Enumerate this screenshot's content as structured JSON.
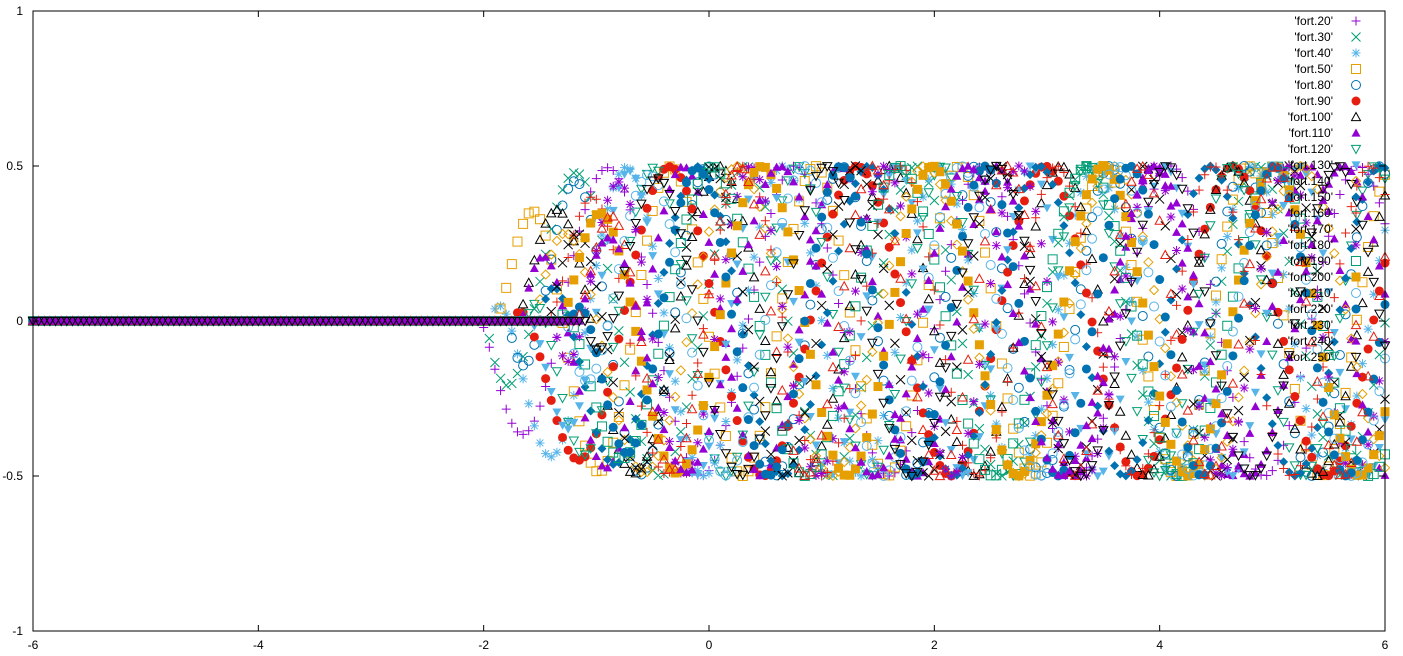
{
  "chart_data": {
    "type": "scatter",
    "title": "",
    "xlabel": "",
    "ylabel": "",
    "xlim": [
      -6,
      6
    ],
    "ylim": [
      -1,
      1
    ],
    "x_ticks": [
      -6,
      -4,
      -2,
      0,
      2,
      4,
      6
    ],
    "y_ticks": [
      -1,
      -0.5,
      0,
      0.5,
      1
    ],
    "x_tick_labels": [
      "-6",
      "-4",
      "-2",
      "0",
      "2",
      "4",
      "6"
    ],
    "y_tick_labels": [
      "-1",
      "-0.5",
      "0",
      "0.5",
      "1"
    ],
    "grid": false,
    "legend_position": "top-right",
    "x_sampling": {
      "start": -6,
      "end": 6,
      "step": 0.05
    },
    "wave": {
      "front_start": -2.1,
      "front_speed": 0.004,
      "amplitude": 0.5,
      "k_base": 1.2,
      "k_growth": 0.12,
      "t_scale": 0.004
    },
    "series": [
      {
        "name": "'fort.20'",
        "marker": "plus",
        "color": "#9400d3",
        "t": 20,
        "sign": -1
      },
      {
        "name": "'fort.30'",
        "marker": "cross",
        "color": "#009e73",
        "t": 30,
        "sign": -1
      },
      {
        "name": "'fort.40'",
        "marker": "star",
        "color": "#56b4e9",
        "t": 40,
        "sign": 1
      },
      {
        "name": "'fort.50'",
        "marker": "square-open",
        "color": "#e69f00",
        "t": 50,
        "sign": -1
      },
      {
        "name": "'fort.80'",
        "marker": "circle-open",
        "color": "#0072b2",
        "t": 80,
        "sign": 1
      },
      {
        "name": "'fort.90'",
        "marker": "circle-filled",
        "color": "#e51e10",
        "t": 90,
        "sign": -1
      },
      {
        "name": "'fort.100'",
        "marker": "triangle-open",
        "color": "#000000",
        "t": 100,
        "sign": 1
      },
      {
        "name": "'fort.110'",
        "marker": "triangle-filled",
        "color": "#9400d3",
        "t": 110,
        "sign": 1
      },
      {
        "name": "'fort.120'",
        "marker": "triangle-down-open",
        "color": "#009e73",
        "t": 120,
        "sign": 1
      },
      {
        "name": "'fort.130'",
        "marker": "triangle-down-filled",
        "color": "#56b4e9",
        "t": 130,
        "sign": 1
      },
      {
        "name": "'fort.140'",
        "marker": "diamond-open",
        "color": "#e69f00",
        "t": 140,
        "sign": -1
      },
      {
        "name": "'fort.150'",
        "marker": "diamond-filled",
        "color": "#0072b2",
        "t": 150,
        "sign": -1
      },
      {
        "name": "'fort.160'",
        "marker": "plus",
        "color": "#e51e10",
        "t": 160,
        "sign": 1
      },
      {
        "name": "'fort.170'",
        "marker": "cross",
        "color": "#000000",
        "t": 170,
        "sign": 1
      },
      {
        "name": "'fort.180'",
        "marker": "star",
        "color": "#9400d3",
        "t": 180,
        "sign": -1
      },
      {
        "name": "'fort.190'",
        "marker": "square-open",
        "color": "#009e73",
        "t": 190,
        "sign": 1
      },
      {
        "name": "'fort.200'",
        "marker": "square-filled",
        "color": "#e69f00",
        "t": 200,
        "sign": -1
      },
      {
        "name": "'fort.210'",
        "marker": "circle-open",
        "color": "#56b4e9",
        "t": 210,
        "sign": 1
      },
      {
        "name": "'fort.220'",
        "marker": "circle-filled",
        "color": "#0072b2",
        "t": 220,
        "sign": -1
      },
      {
        "name": "'fort.230'",
        "marker": "triangle-open",
        "color": "#e51e10",
        "t": 230,
        "sign": 1
      },
      {
        "name": "'fort.240'",
        "marker": "triangle-filled",
        "color": "#9400d3",
        "t": 240,
        "sign": 1
      },
      {
        "name": "'fort.250'",
        "marker": "triangle-down-open",
        "color": "#000000",
        "t": 250,
        "sign": -1
      }
    ]
  }
}
